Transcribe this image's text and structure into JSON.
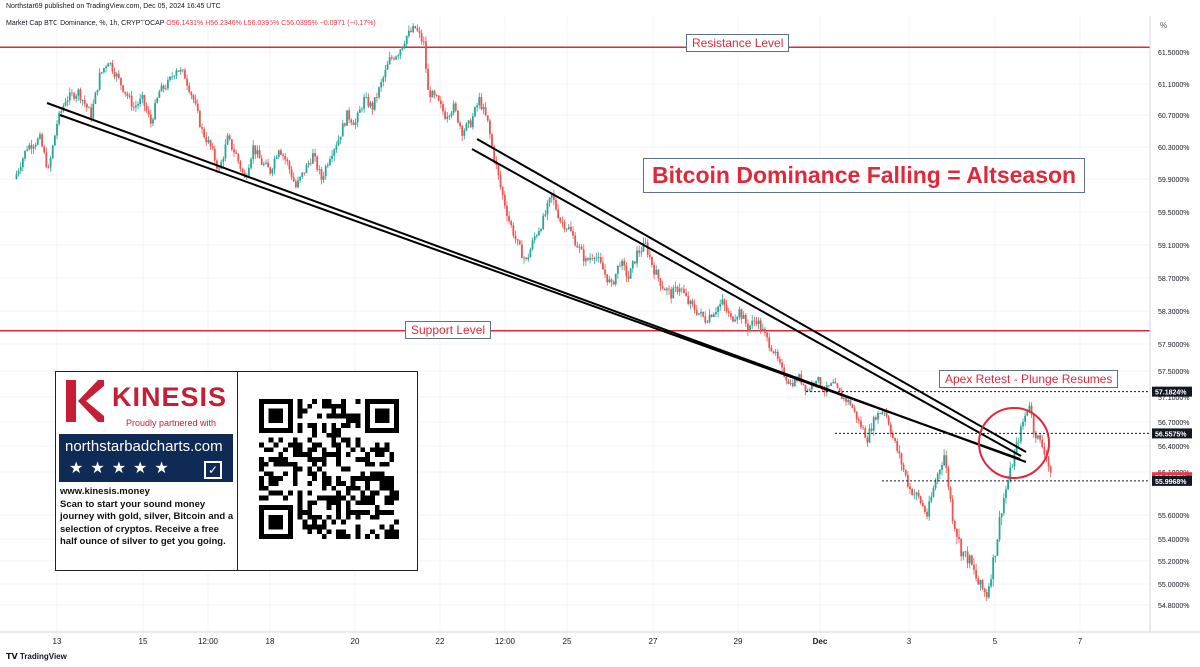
{
  "header": {
    "published": "Northstar69 published on TradingView.com, Dec 05, 2024 16:45 UTC",
    "symbol": "Market Cap BTC Dominance, %, 1h, CRYPTOCAP",
    "ohlc": {
      "o": "O56.1431%",
      "h": "H56.2346%",
      "l": "L56.0395%",
      "c": "C56.0395%",
      "chg": "−0.0971 (−0.17%)"
    },
    "unit_label": "%"
  },
  "footer": {
    "brand": "TradingView"
  },
  "annotations": {
    "title": "Bitcoin Dominance Falling = Altseason",
    "resistance": "Resistance Level",
    "support": "Support Level",
    "apex": "Apex Retest - Plunge Resumes"
  },
  "promo": {
    "brand": "KINESIS",
    "tagline": "Proudly partnered with",
    "site": "northstarbadcharts.com",
    "stars": "★★★★★",
    "check": "✓",
    "url": "www.kinesis.money",
    "body": "Scan to start your sound money journey with gold, silver, Bitcoin and a selection of cryptos. Receive a free half ounce of silver to get you going."
  },
  "colors": {
    "up": "#26a69a",
    "down": "#ef5350",
    "level_line": "#e0283a",
    "trend_line": "#000000",
    "label_bg": "#131722",
    "price_tag": "#f23645"
  },
  "chart_data": {
    "type": "candlestick",
    "x_ticks": [
      "13",
      "15",
      "12:00",
      "18",
      "20",
      "22",
      "12:00",
      "25",
      "27",
      "29",
      "Dec",
      "3",
      "5",
      "7"
    ],
    "y_ticks": [
      "61.5000%",
      "61.1000%",
      "60.7000%",
      "60.3000%",
      "59.9000%",
      "59.5000%",
      "59.1000%",
      "58.7000%",
      "58.3000%",
      "57.9000%",
      "57.5000%",
      "57.1000%",
      "56.7000%",
      "56.4000%",
      "56.1000%",
      "55.6000%",
      "55.4000%",
      "55.2000%",
      "55.0000%",
      "54.8000%"
    ],
    "y_range": [
      54.7,
      61.9
    ],
    "levels": {
      "resistance": 61.56,
      "support": 58.06
    },
    "price_labels": [
      {
        "text": "57.1824%",
        "value": 57.1824,
        "style": "dark"
      },
      {
        "text": "56.5575%",
        "value": 56.5575,
        "style": "dark"
      },
      {
        "text": "56.0395%",
        "value": 56.0395,
        "style": "red"
      },
      {
        "text": "55.9968%",
        "value": 55.9968,
        "style": "dark"
      }
    ],
    "price_path": [
      [
        12.0,
        59.9
      ],
      [
        12.3,
        60.3
      ],
      [
        12.6,
        60.4
      ],
      [
        12.8,
        60.0
      ],
      [
        13.0,
        60.6
      ],
      [
        13.2,
        60.9
      ],
      [
        13.5,
        61.0
      ],
      [
        13.8,
        60.7
      ],
      [
        14.0,
        61.2
      ],
      [
        14.2,
        61.4
      ],
      [
        14.5,
        61.1
      ],
      [
        14.8,
        60.8
      ],
      [
        15.0,
        60.9
      ],
      [
        15.2,
        60.6
      ],
      [
        15.4,
        61.0
      ],
      [
        15.6,
        61.1
      ],
      [
        15.8,
        61.3
      ],
      [
        16.0,
        61.2
      ],
      [
        16.2,
        60.9
      ],
      [
        16.4,
        60.5
      ],
      [
        16.6,
        60.3
      ],
      [
        16.8,
        60.0
      ],
      [
        17.0,
        60.4
      ],
      [
        17.2,
        60.2
      ],
      [
        17.4,
        59.9
      ],
      [
        17.6,
        60.3
      ],
      [
        17.8,
        60.1
      ],
      [
        18.0,
        60.0
      ],
      [
        18.2,
        60.3
      ],
      [
        18.4,
        60.1
      ],
      [
        18.6,
        59.8
      ],
      [
        18.8,
        60.0
      ],
      [
        19.0,
        60.2
      ],
      [
        19.2,
        59.9
      ],
      [
        19.4,
        60.2
      ],
      [
        19.6,
        60.4
      ],
      [
        19.8,
        60.7
      ],
      [
        20.0,
        60.6
      ],
      [
        20.2,
        60.9
      ],
      [
        20.4,
        60.8
      ],
      [
        20.6,
        61.1
      ],
      [
        20.8,
        61.4
      ],
      [
        21.0,
        61.5
      ],
      [
        21.2,
        61.7
      ],
      [
        21.4,
        61.8
      ],
      [
        21.6,
        61.6
      ],
      [
        21.7,
        61.0
      ],
      [
        21.9,
        60.9
      ],
      [
        22.1,
        60.7
      ],
      [
        22.3,
        60.8
      ],
      [
        22.5,
        60.5
      ],
      [
        22.7,
        60.6
      ],
      [
        22.9,
        60.9
      ],
      [
        23.1,
        60.6
      ],
      [
        23.2,
        60.3
      ],
      [
        23.4,
        59.8
      ],
      [
        23.6,
        59.4
      ],
      [
        23.8,
        59.1
      ],
      [
        24.0,
        58.9
      ],
      [
        24.2,
        59.2
      ],
      [
        24.4,
        59.4
      ],
      [
        24.6,
        59.7
      ],
      [
        24.8,
        59.4
      ],
      [
        25.0,
        59.3
      ],
      [
        25.2,
        59.1
      ],
      [
        25.4,
        58.9
      ],
      [
        25.6,
        59.0
      ],
      [
        25.8,
        58.8
      ],
      [
        26.0,
        58.6
      ],
      [
        26.2,
        58.9
      ],
      [
        26.4,
        58.7
      ],
      [
        26.6,
        59.0
      ],
      [
        26.8,
        59.1
      ],
      [
        27.0,
        58.8
      ],
      [
        27.2,
        58.6
      ],
      [
        27.4,
        58.5
      ],
      [
        27.6,
        58.6
      ],
      [
        27.8,
        58.4
      ],
      [
        28.0,
        58.3
      ],
      [
        28.2,
        58.2
      ],
      [
        28.4,
        58.3
      ],
      [
        28.6,
        58.4
      ],
      [
        28.8,
        58.2
      ],
      [
        29.0,
        58.3
      ],
      [
        29.2,
        58.1
      ],
      [
        29.4,
        58.2
      ],
      [
        29.6,
        58.0
      ],
      [
        29.8,
        57.8
      ],
      [
        30.0,
        57.5
      ],
      [
        30.2,
        57.3
      ],
      [
        30.4,
        57.4
      ],
      [
        30.6,
        57.2
      ],
      [
        30.8,
        57.4
      ],
      [
        31.0,
        57.2
      ],
      [
        31.2,
        57.3
      ],
      [
        31.4,
        57.1
      ],
      [
        31.6,
        57.0
      ],
      [
        31.8,
        56.7
      ],
      [
        32.0,
        56.5
      ],
      [
        32.2,
        56.8
      ],
      [
        32.4,
        56.9
      ],
      [
        32.6,
        56.5
      ],
      [
        32.8,
        56.2
      ],
      [
        33.0,
        55.9
      ],
      [
        33.2,
        55.8
      ],
      [
        33.4,
        55.6
      ],
      [
        33.6,
        56.0
      ],
      [
        33.8,
        56.3
      ],
      [
        34.0,
        55.6
      ],
      [
        34.2,
        55.3
      ],
      [
        34.4,
        55.2
      ],
      [
        34.6,
        55.0
      ],
      [
        34.8,
        54.9
      ],
      [
        35.0,
        55.3
      ],
      [
        35.2,
        55.8
      ],
      [
        35.4,
        56.2
      ],
      [
        35.6,
        56.6
      ],
      [
        35.8,
        57.0
      ],
      [
        35.9,
        56.6
      ],
      [
        36.0,
        56.5
      ],
      [
        36.2,
        56.3
      ],
      [
        36.3,
        56.04
      ]
    ]
  }
}
